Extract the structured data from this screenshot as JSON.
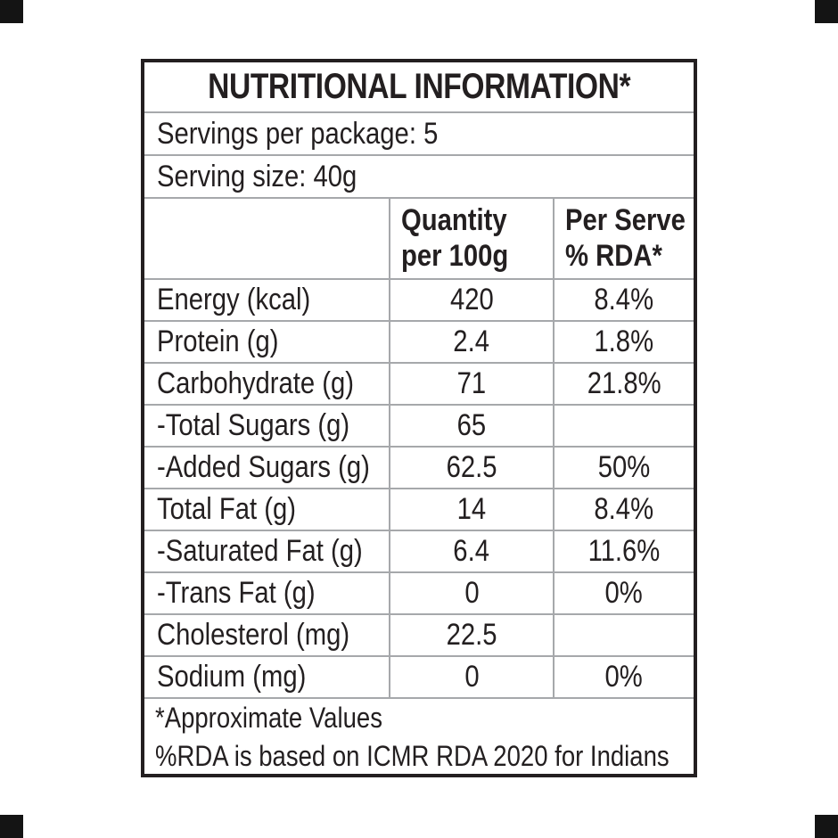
{
  "label": {
    "title": "NUTRITIONAL INFORMATION*",
    "servings_per_package": "Servings per package: 5",
    "serving_size": "Serving size: 40g",
    "columns": {
      "quantity": {
        "line1": "Quantity",
        "line2": "per 100g"
      },
      "per_serve": {
        "line1": "Per Serve",
        "line2": "% RDA*"
      }
    },
    "rows": [
      {
        "label": "Energy (kcal)",
        "qty": "420",
        "rda": "8.4%"
      },
      {
        "label": "Protein (g)",
        "qty": "2.4",
        "rda": "1.8%"
      },
      {
        "label": "Carbohydrate (g)",
        "qty": "71",
        "rda": "21.8%"
      },
      {
        "label": "-Total Sugars (g)",
        "qty": "65",
        "rda": ""
      },
      {
        "label": "-Added Sugars (g)",
        "qty": "62.5",
        "rda": "50%"
      },
      {
        "label": "Total Fat (g)",
        "qty": "14",
        "rda": "8.4%"
      },
      {
        "label": "-Saturated Fat (g)",
        "qty": "6.4",
        "rda": "11.6%"
      },
      {
        "label": "-Trans Fat (g)",
        "qty": "0",
        "rda": "0%"
      },
      {
        "label": "Cholesterol (mg)",
        "qty": "22.5",
        "rda": ""
      },
      {
        "label": "Sodium (mg)",
        "qty": "0",
        "rda": "0%"
      }
    ],
    "footnotes": [
      "*Approximate Values",
      "%RDA is based on ICMR RDA 2020 for Indians"
    ],
    "colors": {
      "text": "#231f20",
      "grid_line": "#a6a8ab",
      "outer_border": "#231f20",
      "background": "#ffffff",
      "corner_mark": "#141414"
    }
  }
}
